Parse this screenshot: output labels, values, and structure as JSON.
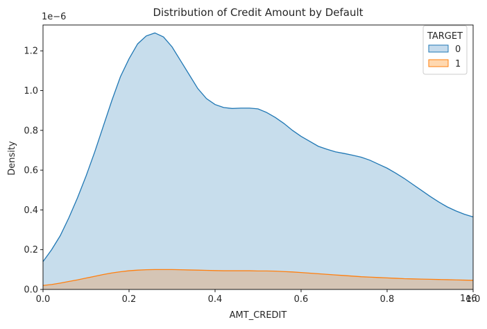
{
  "chart_data": {
    "type": "area",
    "title": "Distribution of Credit Amount by Default",
    "xlabel": "AMT_CREDIT",
    "ylabel": "Density",
    "x_offset_label": "1e6",
    "y_offset_label": "1e−6",
    "xlim": [
      0,
      1.0
    ],
    "ylim": [
      0,
      1.33
    ],
    "x_ticks": [
      0.0,
      0.2,
      0.4,
      0.6,
      0.8,
      1.0
    ],
    "x_tick_labels": [
      "0.0",
      "0.2",
      "0.4",
      "0.6",
      "0.8",
      "1.0"
    ],
    "y_ticks": [
      0.0,
      0.2,
      0.4,
      0.6,
      0.8,
      1.0,
      1.2
    ],
    "y_tick_labels": [
      "0.0",
      "0.2",
      "0.4",
      "0.6",
      "0.8",
      "1.0",
      "1.2"
    ],
    "grid": false,
    "legend": {
      "title": "TARGET",
      "placement": "top-right"
    },
    "series": [
      {
        "name": "0",
        "color": "#1f77b4",
        "fill": "#c5dbed",
        "x": [
          0.0,
          0.02,
          0.04,
          0.06,
          0.08,
          0.1,
          0.12,
          0.14,
          0.16,
          0.18,
          0.2,
          0.22,
          0.24,
          0.26,
          0.28,
          0.3,
          0.32,
          0.34,
          0.36,
          0.38,
          0.4,
          0.42,
          0.44,
          0.46,
          0.48,
          0.5,
          0.52,
          0.54,
          0.56,
          0.58,
          0.6,
          0.62,
          0.64,
          0.66,
          0.68,
          0.7,
          0.72,
          0.74,
          0.76,
          0.78,
          0.8,
          0.82,
          0.84,
          0.86,
          0.88,
          0.9,
          0.92,
          0.94,
          0.96,
          0.98,
          1.0
        ],
        "values": [
          0.14,
          0.2,
          0.27,
          0.36,
          0.46,
          0.57,
          0.69,
          0.82,
          0.95,
          1.07,
          1.16,
          1.235,
          1.275,
          1.29,
          1.27,
          1.22,
          1.15,
          1.08,
          1.01,
          0.96,
          0.93,
          0.915,
          0.91,
          0.912,
          0.912,
          0.908,
          0.89,
          0.865,
          0.835,
          0.8,
          0.77,
          0.745,
          0.72,
          0.705,
          0.692,
          0.684,
          0.675,
          0.665,
          0.65,
          0.63,
          0.61,
          0.585,
          0.558,
          0.528,
          0.498,
          0.468,
          0.44,
          0.415,
          0.395,
          0.378,
          0.365
        ]
      },
      {
        "name": "1",
        "color": "#ff7f0e",
        "fill": "#ffd8b0",
        "x": [
          0.0,
          0.02,
          0.04,
          0.06,
          0.08,
          0.1,
          0.12,
          0.14,
          0.16,
          0.18,
          0.2,
          0.22,
          0.24,
          0.26,
          0.28,
          0.3,
          0.32,
          0.34,
          0.36,
          0.38,
          0.4,
          0.42,
          0.44,
          0.46,
          0.48,
          0.5,
          0.52,
          0.54,
          0.56,
          0.58,
          0.6,
          0.62,
          0.64,
          0.66,
          0.68,
          0.7,
          0.72,
          0.74,
          0.76,
          0.78,
          0.8,
          0.82,
          0.84,
          0.86,
          0.88,
          0.9,
          0.92,
          0.94,
          0.96,
          0.98,
          1.0
        ],
        "values": [
          0.02,
          0.025,
          0.032,
          0.04,
          0.048,
          0.057,
          0.066,
          0.075,
          0.083,
          0.089,
          0.094,
          0.097,
          0.099,
          0.1,
          0.1,
          0.1,
          0.099,
          0.098,
          0.097,
          0.096,
          0.095,
          0.094,
          0.094,
          0.094,
          0.094,
          0.093,
          0.093,
          0.092,
          0.09,
          0.088,
          0.085,
          0.082,
          0.079,
          0.076,
          0.073,
          0.07,
          0.067,
          0.064,
          0.062,
          0.06,
          0.058,
          0.056,
          0.054,
          0.053,
          0.052,
          0.051,
          0.05,
          0.049,
          0.048,
          0.047,
          0.046
        ]
      }
    ]
  }
}
